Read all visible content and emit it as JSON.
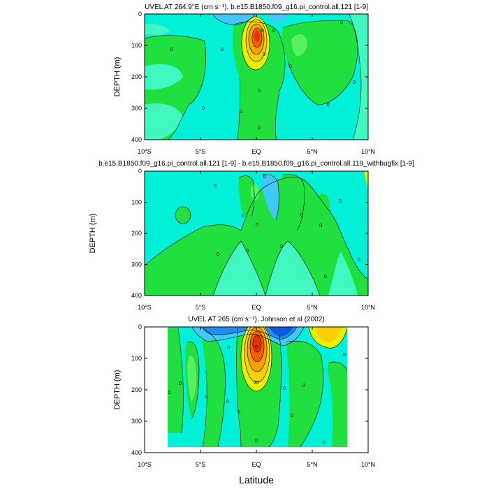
{
  "colors": {
    "cyan": "#00f0d8",
    "aqua": "#40f8c0",
    "green": "#20e040",
    "lightgreen": "#58f060",
    "yellow": "#e8f000",
    "yelloworange": "#f8d000",
    "orange": "#f8a000",
    "redorange": "#f06000",
    "red": "#e83000",
    "lightblue": "#40c8f8",
    "blue": "#2090f0",
    "darkblue": "#1058e0"
  },
  "chart_data": [
    {
      "type": "contour",
      "title": "UVEL AT 264.9°E (cm s⁻¹), b.e15.B1850.f09_g16.pi_control.all.121 [1-9]",
      "xlabel": "",
      "ylabel": "DEPTH (m)",
      "xlim": [
        -10,
        10
      ],
      "ylim": [
        0,
        400
      ],
      "y_inverted": true,
      "x_ticks": [
        -10,
        -5,
        0,
        5,
        10
      ],
      "x_tick_labels": [
        "10°S",
        "5°S",
        "EQ",
        "5°N",
        "10°N"
      ],
      "y_ticks": [
        0,
        100,
        200,
        300,
        400
      ],
      "y_tick_labels": [
        "0",
        "100",
        "200",
        "300",
        "400"
      ],
      "contour_labels": [
        "0",
        "0",
        "0",
        "0",
        "0",
        "0",
        "0",
        "0",
        "0",
        "0",
        "0",
        "0",
        "0"
      ]
    },
    {
      "type": "contour",
      "title": "b.e15.B1850.f09_g16.pi_control.all.121 [1-9] - b.e15.B1850.f09_g16.pi_control.all.119_withbugfix [1-9]",
      "xlabel": "",
      "ylabel": "DEPTH (m)",
      "xlim": [
        -10,
        10
      ],
      "ylim": [
        0,
        400
      ],
      "y_inverted": true,
      "x_ticks": [
        -10,
        -5,
        0,
        5,
        10
      ],
      "x_tick_labels": [
        "10°S",
        "5°S",
        "EQ",
        "5°N",
        "10°N"
      ],
      "y_ticks": [
        0,
        100,
        200,
        300,
        400
      ],
      "y_tick_labels": [
        "0",
        "100",
        "200",
        "300",
        "400"
      ],
      "contour_labels": [
        "0",
        "0",
        "0",
        "0",
        "0",
        "0",
        "0",
        "0",
        "0",
        "0",
        "0",
        "0"
      ]
    },
    {
      "type": "contour",
      "title": "UVEL AT 265 (cm s⁻¹), Johnson et al (2002)",
      "xlabel": "Latitude",
      "ylabel": "DEPTH (m)",
      "xlim": [
        -10,
        10
      ],
      "ylim": [
        0,
        400
      ],
      "y_inverted": true,
      "x_ticks": [
        -10,
        -5,
        0,
        5,
        10
      ],
      "x_tick_labels": [
        "10°S",
        "5°S",
        "EQ",
        "5°N",
        "10°N"
      ],
      "y_ticks": [
        0,
        100,
        200,
        300,
        400
      ],
      "y_tick_labels": [
        "0",
        "100",
        "200",
        "300",
        "400"
      ],
      "contour_labels": [
        "0",
        "0",
        "0",
        "0",
        "0",
        "0",
        "0",
        "0",
        "0",
        "0",
        "0",
        "0",
        "0",
        "20"
      ]
    }
  ]
}
